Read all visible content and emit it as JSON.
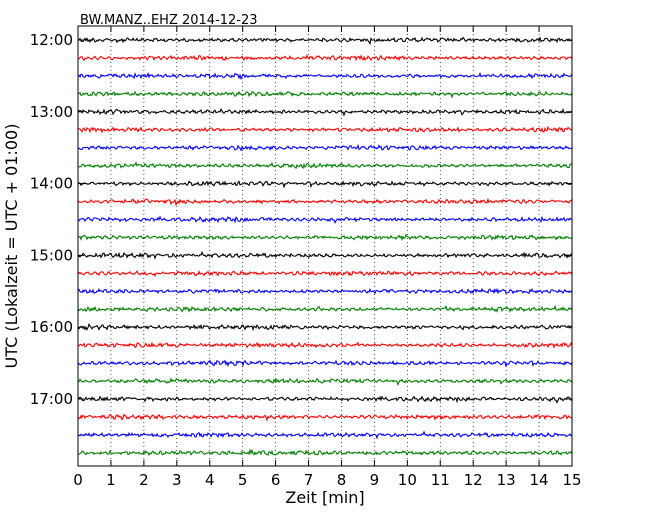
{
  "chart_data": {
    "type": "line",
    "title": "BW.MANZ..EHZ 2014-12-23",
    "xlabel": "Zeit  [min]",
    "ylabel": "UTC (Lokalzeit = UTC + 01:00)",
    "xlim": [
      0,
      15
    ],
    "x_ticks": [
      "0",
      "1",
      "2",
      "3",
      "4",
      "5",
      "6",
      "7",
      "8",
      "9",
      "10",
      "11",
      "12",
      "13",
      "14",
      "15"
    ],
    "y_ticks": [
      "12:00",
      "13:00",
      "14:00",
      "15:00",
      "16:00",
      "17:00"
    ],
    "grid": "vertical dotted lines at each minute",
    "trace_colors": [
      "#000000",
      "#ff0000",
      "#0000ff",
      "#008000"
    ],
    "traces": [
      {
        "start": "12:00",
        "color": "#000000"
      },
      {
        "start": "12:15",
        "color": "#ff0000"
      },
      {
        "start": "12:30",
        "color": "#0000ff"
      },
      {
        "start": "12:45",
        "color": "#008000"
      },
      {
        "start": "13:00",
        "color": "#000000"
      },
      {
        "start": "13:15",
        "color": "#ff0000"
      },
      {
        "start": "13:30",
        "color": "#0000ff"
      },
      {
        "start": "13:45",
        "color": "#008000"
      },
      {
        "start": "14:00",
        "color": "#000000"
      },
      {
        "start": "14:15",
        "color": "#ff0000"
      },
      {
        "start": "14:30",
        "color": "#0000ff"
      },
      {
        "start": "14:45",
        "color": "#008000"
      },
      {
        "start": "15:00",
        "color": "#000000"
      },
      {
        "start": "15:15",
        "color": "#ff0000"
      },
      {
        "start": "15:30",
        "color": "#0000ff"
      },
      {
        "start": "15:45",
        "color": "#008000"
      },
      {
        "start": "16:00",
        "color": "#000000"
      },
      {
        "start": "16:15",
        "color": "#ff0000"
      },
      {
        "start": "16:30",
        "color": "#0000ff"
      },
      {
        "start": "16:45",
        "color": "#008000"
      },
      {
        "start": "17:00",
        "color": "#000000"
      },
      {
        "start": "17:15",
        "color": "#ff0000"
      },
      {
        "start": "17:30",
        "color": "#0000ff"
      },
      {
        "start": "17:45",
        "color": "#008000"
      }
    ]
  }
}
